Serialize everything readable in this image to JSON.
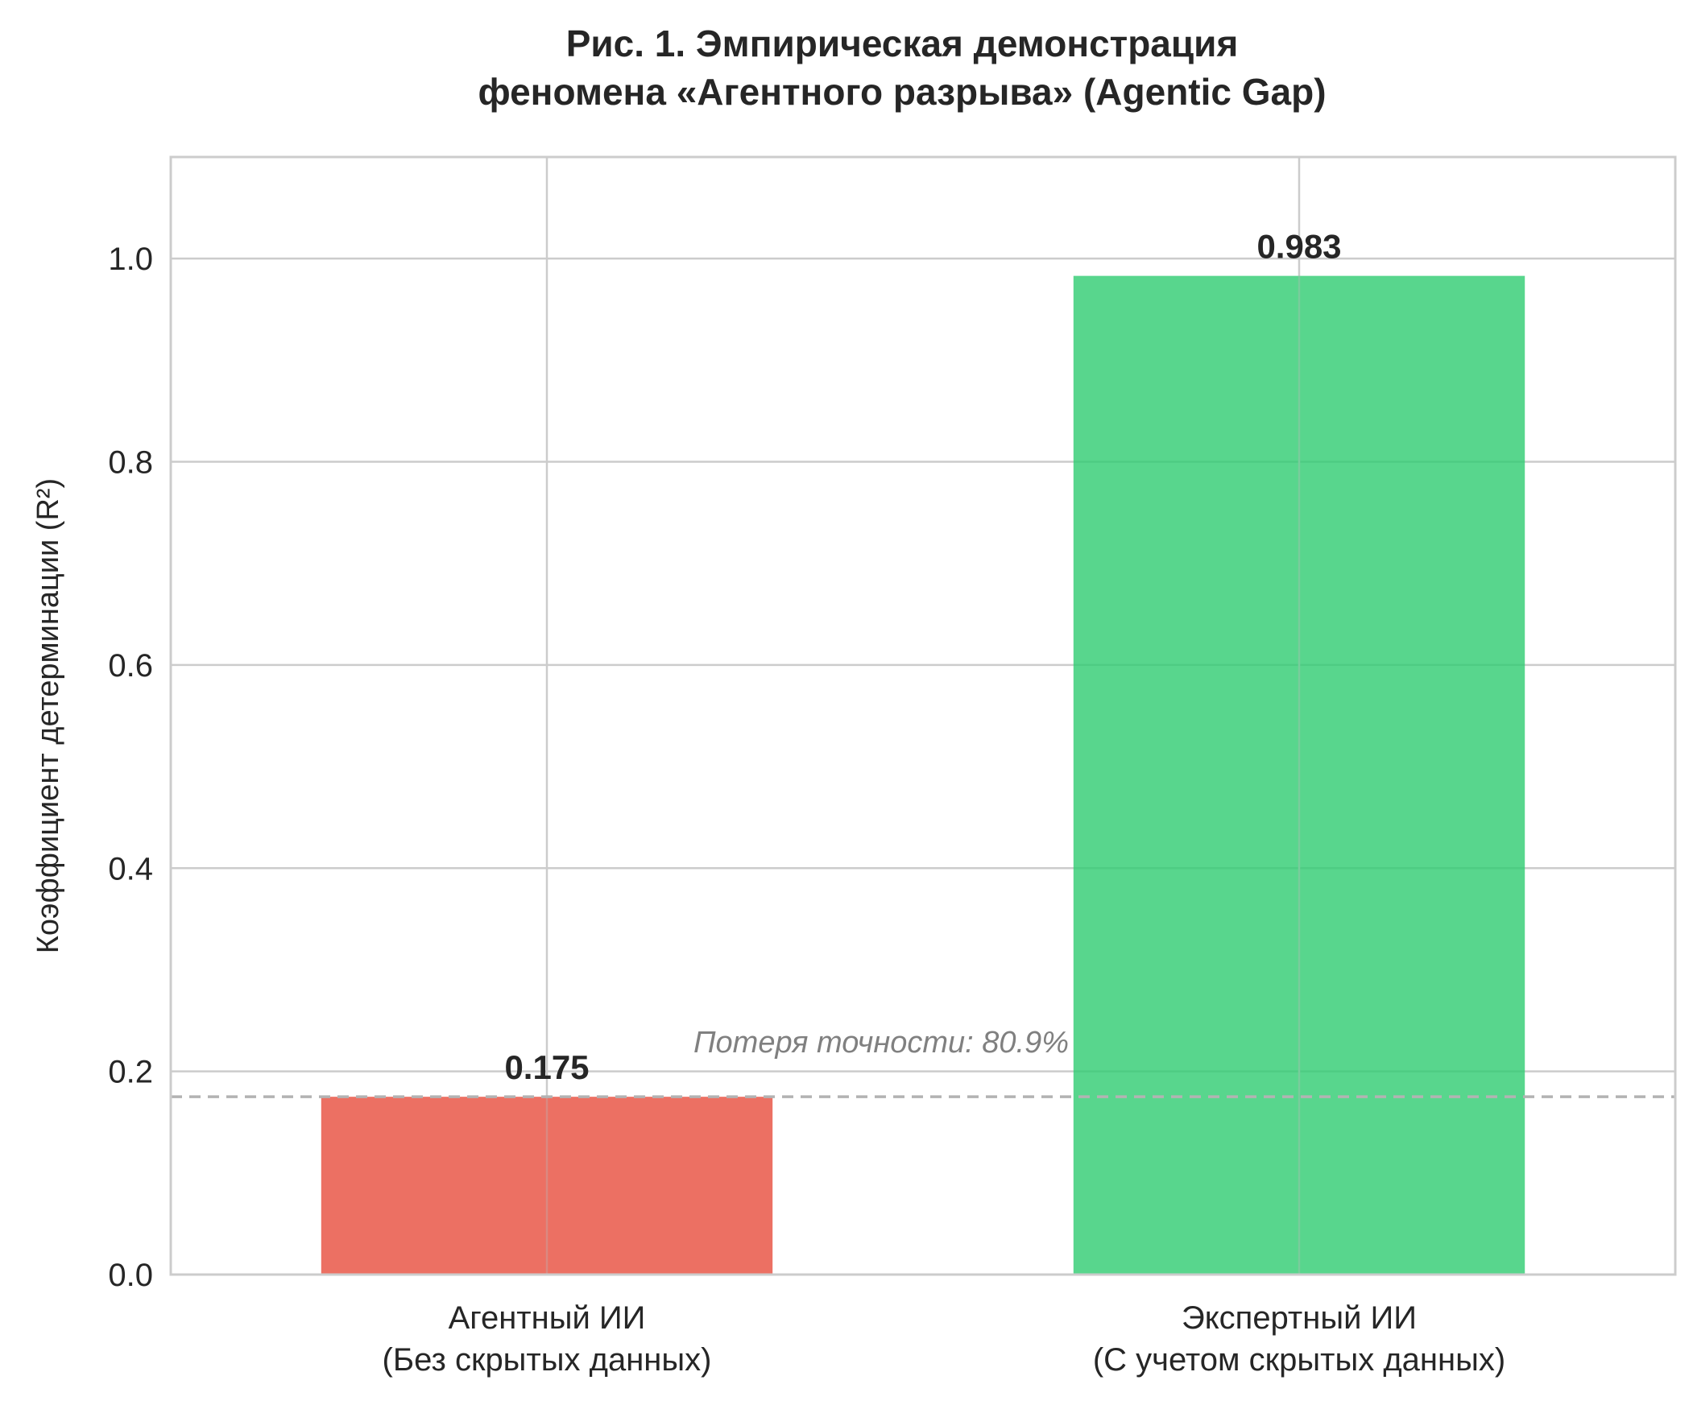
{
  "chart_data": {
    "type": "bar",
    "title_lines": [
      "Рис. 1. Эмпирическая демонстрация",
      "феномена «Агентного разрыва» (Agentic Gap)"
    ],
    "ylabel": "Коэффициент детерминации (R²)",
    "ylim": [
      0,
      1.1
    ],
    "yticks": [
      "0.0",
      "0.2",
      "0.4",
      "0.6",
      "0.8",
      "1.0"
    ],
    "grid": true,
    "categories": [
      [
        "Агентный ИИ",
        "(Без скрытых данных)"
      ],
      [
        "Экспертный ИИ",
        "(С учетом скрытых данных)"
      ]
    ],
    "values": [
      0.175,
      0.983
    ],
    "value_labels": [
      "0.175",
      "0.983"
    ],
    "bar_colors": [
      "#e74c3c",
      "#2ecc71"
    ],
    "reference_line": {
      "y": 0.175,
      "style": "dashed",
      "color": "#b3b3b3"
    },
    "annotation": {
      "text": "Потеря точности: 80.9%",
      "x": 0.5,
      "y": 0.23
    }
  }
}
